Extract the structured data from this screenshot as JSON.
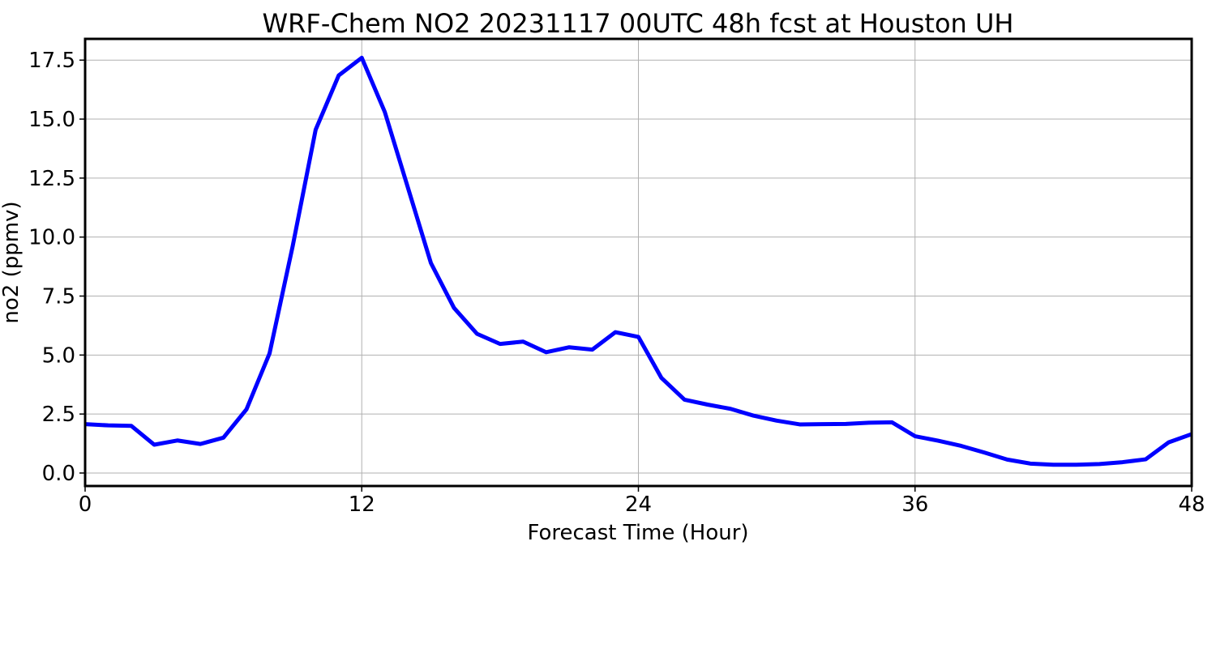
{
  "chart_data": {
    "type": "line",
    "title": "WRF-Chem NO2  20231117 00UTC 48h fcst at Houston UH",
    "xlabel": "Forecast Time (Hour)",
    "ylabel": "no2  (ppmv)",
    "xlim": [
      0,
      48
    ],
    "ylim": [
      -0.55,
      18.4
    ],
    "xticks": [
      0,
      12,
      24,
      36,
      48
    ],
    "xtick_labels": [
      "0",
      "12",
      "24",
      "36",
      "48"
    ],
    "yticks": [
      0,
      2.5,
      5,
      7.5,
      10,
      12.5,
      15,
      17.5
    ],
    "ytick_labels": [
      "0.0",
      "2.5",
      "5.0",
      "7.5",
      "10.0",
      "12.5",
      "15.0",
      "17.5"
    ],
    "grid": true,
    "series": [
      {
        "color": "#0000ff",
        "x": [
          0,
          1,
          2,
          3,
          4,
          5,
          6,
          7,
          8,
          9,
          10,
          11,
          12,
          13,
          14,
          15,
          16,
          17,
          18,
          19,
          20,
          21,
          22,
          23,
          24,
          25,
          26,
          27,
          28,
          29,
          30,
          31,
          32,
          33,
          34,
          35,
          36,
          37,
          38,
          39,
          40,
          41,
          42,
          43,
          44,
          45,
          46,
          47,
          48
        ],
        "y": [
          2.07,
          2.02,
          2.0,
          1.2,
          1.38,
          1.23,
          1.5,
          2.7,
          5.07,
          9.6,
          14.55,
          16.85,
          17.6,
          15.3,
          12.1,
          8.9,
          7.0,
          5.9,
          5.47,
          5.57,
          5.12,
          5.33,
          5.23,
          5.97,
          5.77,
          4.03,
          3.11,
          2.9,
          2.72,
          2.43,
          2.22,
          2.06,
          2.07,
          2.08,
          2.13,
          2.15,
          1.56,
          1.37,
          1.15,
          0.87,
          0.57,
          0.4,
          0.35,
          0.35,
          0.38,
          0.46,
          0.58,
          1.3,
          1.65
        ]
      }
    ]
  }
}
